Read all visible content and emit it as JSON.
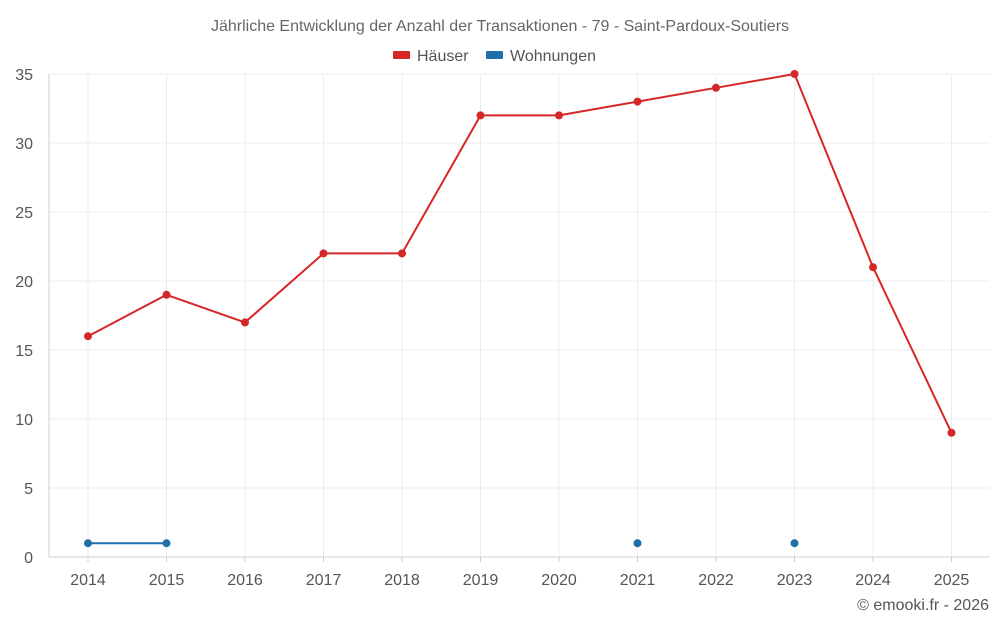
{
  "chart_data": {
    "type": "line",
    "title": "Jährliche Entwicklung der Anzahl der Transaktionen - 79 - Saint-Pardoux-Soutiers",
    "categories": [
      "2014",
      "2015",
      "2016",
      "2017",
      "2018",
      "2019",
      "2020",
      "2021",
      "2022",
      "2023",
      "2024",
      "2025"
    ],
    "xlabel": "",
    "ylabel": "",
    "ylim": [
      0,
      35
    ],
    "yticks": [
      0,
      5,
      10,
      15,
      20,
      25,
      30,
      35
    ],
    "grid": true,
    "legend_position": "top-center",
    "series": [
      {
        "name": "Häuser",
        "color": "#d62728",
        "values": [
          16,
          19,
          17,
          22,
          22,
          32,
          32,
          33,
          34,
          35,
          21,
          9
        ]
      },
      {
        "name": "Wohnungen",
        "color": "#1f6fa8",
        "values": [
          1,
          1,
          null,
          null,
          null,
          null,
          null,
          1,
          null,
          1,
          null,
          null
        ]
      }
    ]
  },
  "credit": "© emooki.fr - 2026"
}
